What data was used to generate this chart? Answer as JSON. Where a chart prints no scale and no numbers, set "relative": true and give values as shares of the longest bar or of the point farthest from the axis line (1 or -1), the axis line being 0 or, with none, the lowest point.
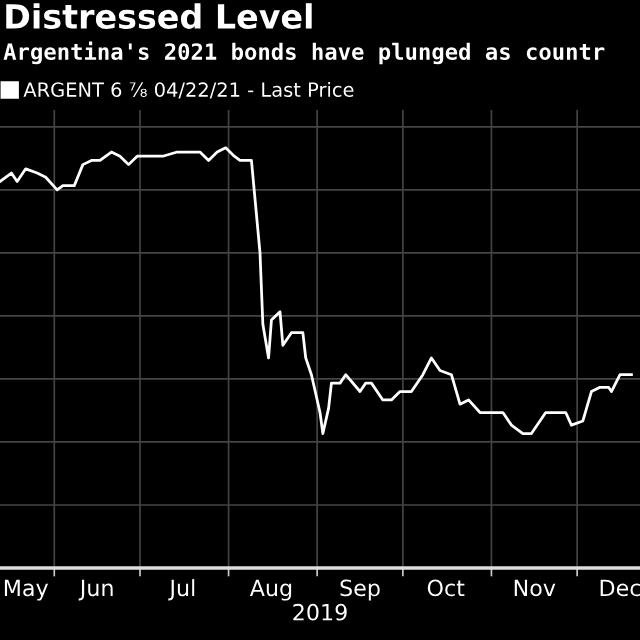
{
  "chart_data": {
    "type": "line",
    "title": "Distressed Level",
    "subtitle": "Argentina's 2021 bonds have plunged as countr",
    "xlabel": "2019",
    "relative": true,
    "grid": true,
    "legend": "top left",
    "marker": "none",
    "line_style": "solid",
    "xlim": [
      "2019-05-13",
      "2019-12-23"
    ],
    "xticks": [
      {
        "value": "2019-05-22",
        "label": "May"
      },
      {
        "value": "2019-06-16",
        "label": "Jun"
      },
      {
        "value": "2019-07-16",
        "label": "Jul"
      },
      {
        "value": "2019-08-16",
        "label": "Aug"
      },
      {
        "value": "2019-09-16",
        "label": "Sep"
      },
      {
        "value": "2019-10-16",
        "label": "Oct"
      },
      {
        "value": "2019-11-16",
        "label": "Nov"
      },
      {
        "value": "2019-12-16",
        "label": "Dec"
      }
    ],
    "series": [
      {
        "name": "ARGENT 6 ⅞ 04/22/21 - Last Price",
        "color": "#ffffff",
        "x": [
          "2019-05-13",
          "2019-05-17",
          "2019-05-19",
          "2019-05-22",
          "2019-05-26",
          "2019-05-29",
          "2019-06-02",
          "2019-06-04",
          "2019-06-08",
          "2019-06-11",
          "2019-06-14",
          "2019-06-17",
          "2019-06-21",
          "2019-06-24",
          "2019-06-27",
          "2019-06-30",
          "2019-07-06",
          "2019-07-09",
          "2019-07-14",
          "2019-07-18",
          "2019-07-22",
          "2019-07-25",
          "2019-07-28",
          "2019-07-31",
          "2019-08-03",
          "2019-08-05",
          "2019-08-09",
          "2019-08-12",
          "2019-08-13",
          "2019-08-15",
          "2019-08-16",
          "2019-08-19",
          "2019-08-20",
          "2019-08-23",
          "2019-08-27",
          "2019-08-28",
          "2019-08-30",
          "2019-09-02",
          "2019-09-03",
          "2019-09-05",
          "2019-09-06",
          "2019-09-09",
          "2019-09-11",
          "2019-09-16",
          "2019-09-18",
          "2019-09-20",
          "2019-09-24",
          "2019-09-27",
          "2019-09-30",
          "2019-10-04",
          "2019-10-08",
          "2019-10-11",
          "2019-10-14",
          "2019-10-18",
          "2019-10-21",
          "2019-10-24",
          "2019-10-28",
          "2019-11-01",
          "2019-11-05",
          "2019-11-08",
          "2019-11-12",
          "2019-11-15",
          "2019-11-20",
          "2019-11-22",
          "2019-11-27",
          "2019-11-29",
          "2019-12-03",
          "2019-12-06",
          "2019-12-09",
          "2019-12-12",
          "2019-12-13",
          "2019-12-16",
          "2019-12-20"
        ],
        "values": [
          0.92,
          0.94,
          0.92,
          0.95,
          0.94,
          0.93,
          0.9,
          0.91,
          0.91,
          0.96,
          0.97,
          0.97,
          0.99,
          0.98,
          0.96,
          0.98,
          0.98,
          0.98,
          0.99,
          0.99,
          0.99,
          0.97,
          0.99,
          1.0,
          0.98,
          0.97,
          0.97,
          0.75,
          0.58,
          0.5,
          0.59,
          0.61,
          0.53,
          0.56,
          0.56,
          0.5,
          0.46,
          0.37,
          0.32,
          0.38,
          0.44,
          0.44,
          0.46,
          0.42,
          0.44,
          0.44,
          0.4,
          0.4,
          0.42,
          0.42,
          0.46,
          0.5,
          0.47,
          0.46,
          0.39,
          0.4,
          0.37,
          0.37,
          0.37,
          0.34,
          0.32,
          0.32,
          0.37,
          0.37,
          0.37,
          0.34,
          0.35,
          0.42,
          0.43,
          0.43,
          0.42,
          0.46,
          0.46
        ]
      }
    ]
  }
}
